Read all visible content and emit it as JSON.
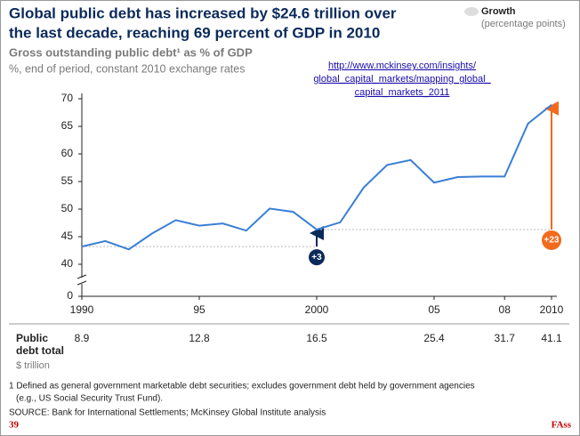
{
  "chart_data": {
    "type": "line",
    "title": [
      "Global public debt has increased by $24.6 trillion over",
      "the last decade, reaching 69 percent of GDP in 2010"
    ],
    "subtitle": [
      "Gross outstanding public debt¹ as % of GDP",
      "%, end of period, constant 2010 exchange rates"
    ],
    "link": [
      "http://www.mckinsey.com/insights/",
      "global_capital_markets/mapping_global_",
      "capital_markets_2011"
    ],
    "legend": {
      "name": "Growth",
      "note": "(percentage points)",
      "color": "#dddddd"
    },
    "x": [
      1990,
      1991,
      1992,
      1993,
      1994,
      1995,
      1996,
      1997,
      1998,
      1999,
      2000,
      2001,
      2002,
      2003,
      2004,
      2005,
      2006,
      2007,
      2008,
      2009,
      2010
    ],
    "series": [
      {
        "name": "Gross outstanding public debt",
        "color": "#3a7fd5",
        "values": [
          43.2,
          44.2,
          42.7,
          45.6,
          48.0,
          47.0,
          47.4,
          46.1,
          50.1,
          49.5,
          46.3,
          47.6,
          53.9,
          58.0,
          58.9,
          54.8,
          55.8,
          55.9,
          55.9,
          65.5,
          68.9
        ]
      }
    ],
    "xlim": [
      1990,
      2010
    ],
    "xticks": [
      1990,
      {
        "value": 1995,
        "label": "95"
      },
      2000,
      {
        "value": 2005,
        "label": "05"
      },
      {
        "value": 2008,
        "label": "08"
      },
      2010
    ],
    "ylim": [
      0,
      70
    ],
    "y_break": [
      0,
      40
    ],
    "yticks": [
      0,
      40,
      45,
      50,
      55,
      60,
      65,
      70
    ],
    "annotations": [
      {
        "text": "+3",
        "from_x": 1990,
        "to_x": 2000,
        "color": "#0b2a5b"
      },
      {
        "text": "+23",
        "from_x": 2000,
        "to_x": 2010,
        "color": "#f26b1d"
      }
    ],
    "debt_row": {
      "label": "Public debt total",
      "unit": "$ trillion",
      "x": [
        1990,
        1995,
        2000,
        2005,
        2008,
        2010
      ],
      "values": [
        8.9,
        12.8,
        16.5,
        25.4,
        31.7,
        41.1
      ]
    },
    "footnote": [
      "1  Defined as general government marketable debt securities; excludes government debt held by government agencies",
      "(e.g., US Social Security Trust Fund)."
    ],
    "source": "SOURCE: Bank for International Settlements; McKinsey Global Institute analysis",
    "page_number": "39",
    "footer_tag": "FAss"
  }
}
